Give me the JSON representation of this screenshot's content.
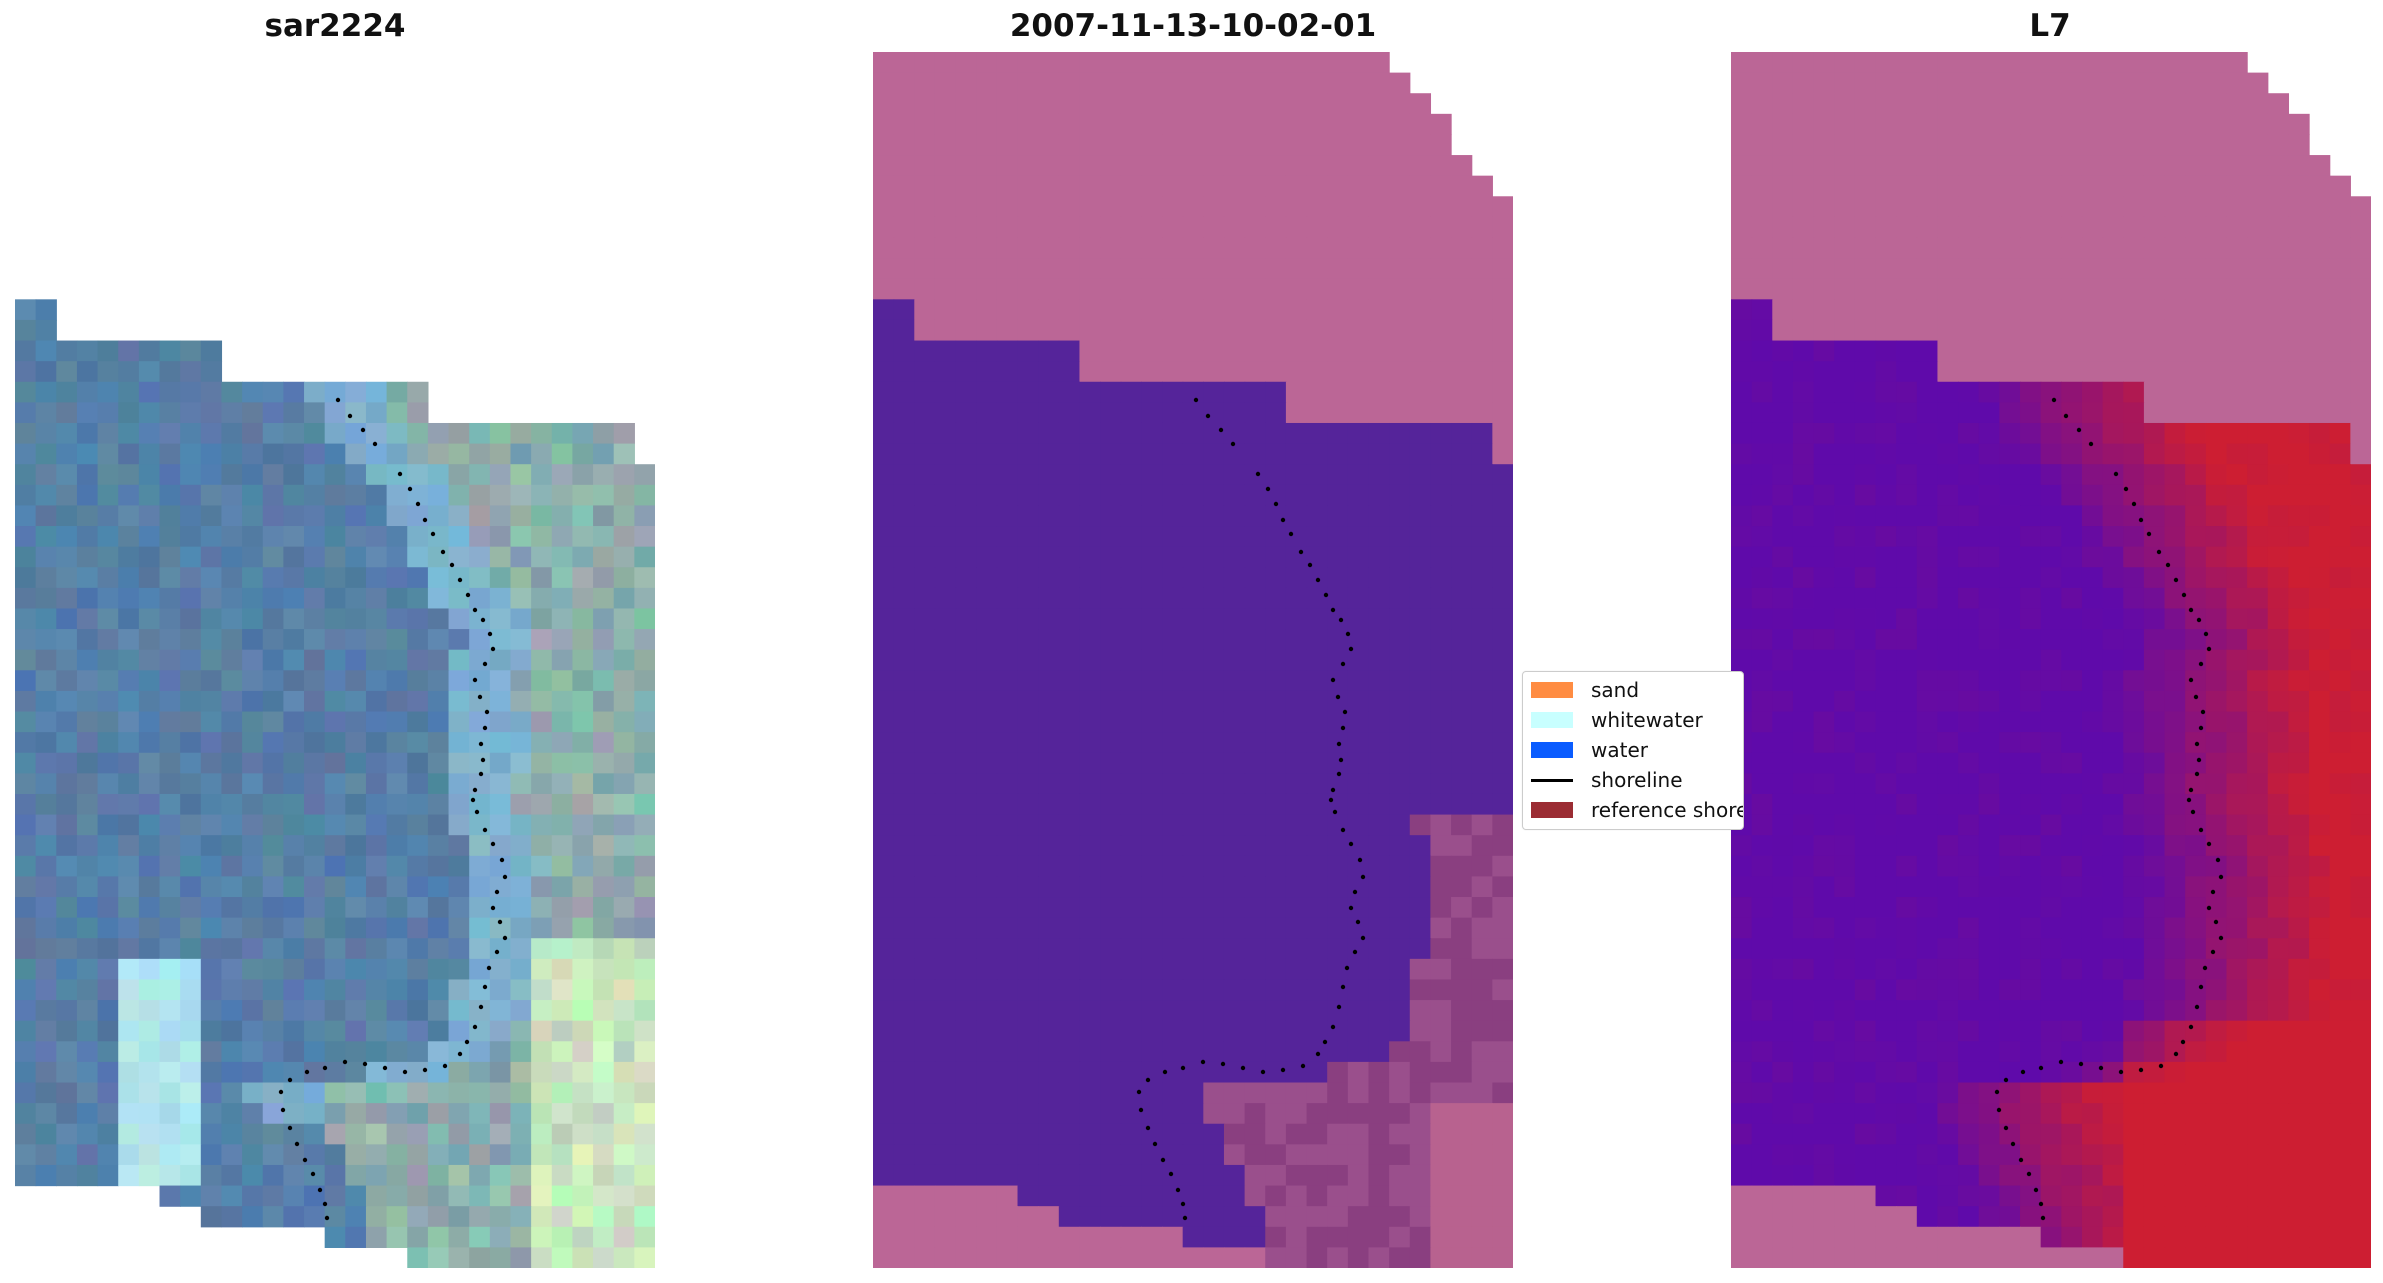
{
  "panels": [
    {
      "title": "sar2224",
      "style": "rgb"
    },
    {
      "title": "2007-11-13-10-02-01",
      "style": "classified"
    },
    {
      "title": "L7",
      "style": "index"
    }
  ],
  "legend": {
    "items": [
      {
        "label": "sand",
        "color": "#ff8c42",
        "kind": "patch"
      },
      {
        "label": "whitewater",
        "color": "#c8ffff",
        "kind": "patch"
      },
      {
        "label": "water",
        "color": "#0a5cff",
        "kind": "patch"
      },
      {
        "label": "shoreline",
        "color": "#000000",
        "kind": "line"
      },
      {
        "label": "reference shoreline",
        "color": "#9b2c33",
        "kind": "patch"
      }
    ]
  },
  "colors": {
    "nodata": "#bb6696",
    "water_class": "#55249a",
    "shoreline_dots": "#000000"
  }
}
